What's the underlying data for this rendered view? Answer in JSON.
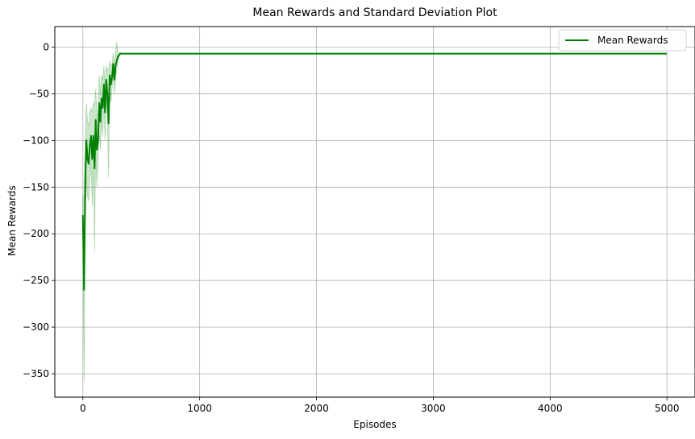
{
  "chart_data": {
    "type": "line",
    "title": "Mean Rewards and Standard Deviation Plot",
    "xlabel": "Episodes",
    "ylabel": "Mean Rewards",
    "xlim": [
      -240,
      5240
    ],
    "ylim": [
      -375,
      22
    ],
    "xticks": [
      0,
      1000,
      2000,
      3000,
      4000,
      5000
    ],
    "yticks": [
      0,
      -50,
      -100,
      -150,
      -200,
      -250,
      -300,
      -350
    ],
    "grid": true,
    "legend": {
      "position": "top-right",
      "entries": [
        "Mean Rewards"
      ]
    },
    "colors": {
      "line": "#008000",
      "band": "#008000",
      "grid": "#b0b0b0"
    },
    "series": [
      {
        "name": "Mean Rewards",
        "x": [
          0,
          10,
          20,
          30,
          40,
          50,
          60,
          70,
          80,
          90,
          100,
          110,
          120,
          130,
          140,
          150,
          160,
          170,
          180,
          190,
          200,
          210,
          220,
          230,
          240,
          250,
          260,
          270,
          280,
          290,
          300,
          320,
          350,
          5000
        ],
        "y": [
          -180,
          -260,
          -150,
          -100,
          -120,
          -125,
          -105,
          -95,
          -120,
          -95,
          -130,
          -78,
          -110,
          -100,
          -60,
          -80,
          -55,
          -65,
          -40,
          -70,
          -35,
          -50,
          -82,
          -30,
          -40,
          -32,
          -18,
          -35,
          -20,
          -15,
          -10,
          -7,
          -7,
          -7
        ],
        "lower": [
          -200,
          -360,
          -200,
          -140,
          -160,
          -165,
          -140,
          -125,
          -170,
          -130,
          -220,
          -110,
          -150,
          -125,
          -90,
          -110,
          -80,
          -95,
          -60,
          -100,
          -50,
          -75,
          -140,
          -45,
          -60,
          -45,
          -30,
          -50,
          -35,
          -25,
          -14,
          -8,
          -7,
          -7
        ],
        "upper": [
          -160,
          -160,
          -100,
          -60,
          -80,
          -85,
          -70,
          -65,
          -70,
          -60,
          -60,
          -45,
          -70,
          -75,
          -30,
          -50,
          -30,
          -35,
          -20,
          -40,
          -20,
          -25,
          -24,
          -15,
          -20,
          -19,
          -6,
          -20,
          -5,
          5,
          -6,
          -6,
          -7,
          -7
        ]
      }
    ]
  }
}
